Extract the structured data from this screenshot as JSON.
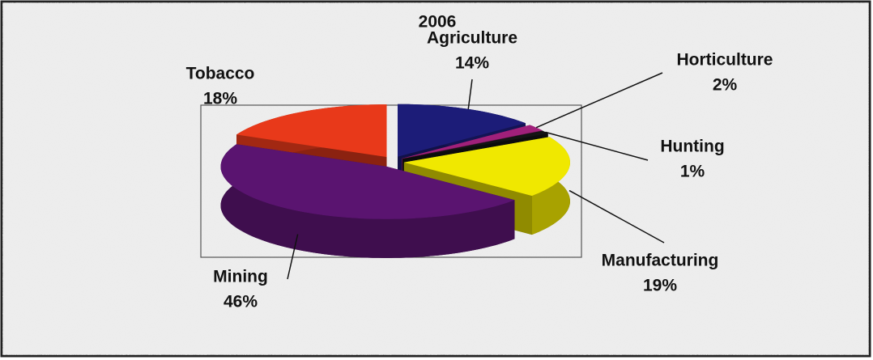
{
  "chart_data": {
    "type": "pie",
    "title": "2006",
    "categories": [
      "Agriculture",
      "Horticulture",
      "Hunting",
      "Manufacturing",
      "Mining",
      "Tobacco"
    ],
    "values": [
      14,
      2,
      1,
      19,
      46,
      18
    ],
    "value_labels": [
      "14%",
      "2%",
      "1%",
      "19%",
      "46%",
      "18%"
    ],
    "colors": [
      "#1c1c78",
      "#a0207a",
      "#141414",
      "#f0e800",
      "#5a1470",
      "#e8391a"
    ]
  }
}
